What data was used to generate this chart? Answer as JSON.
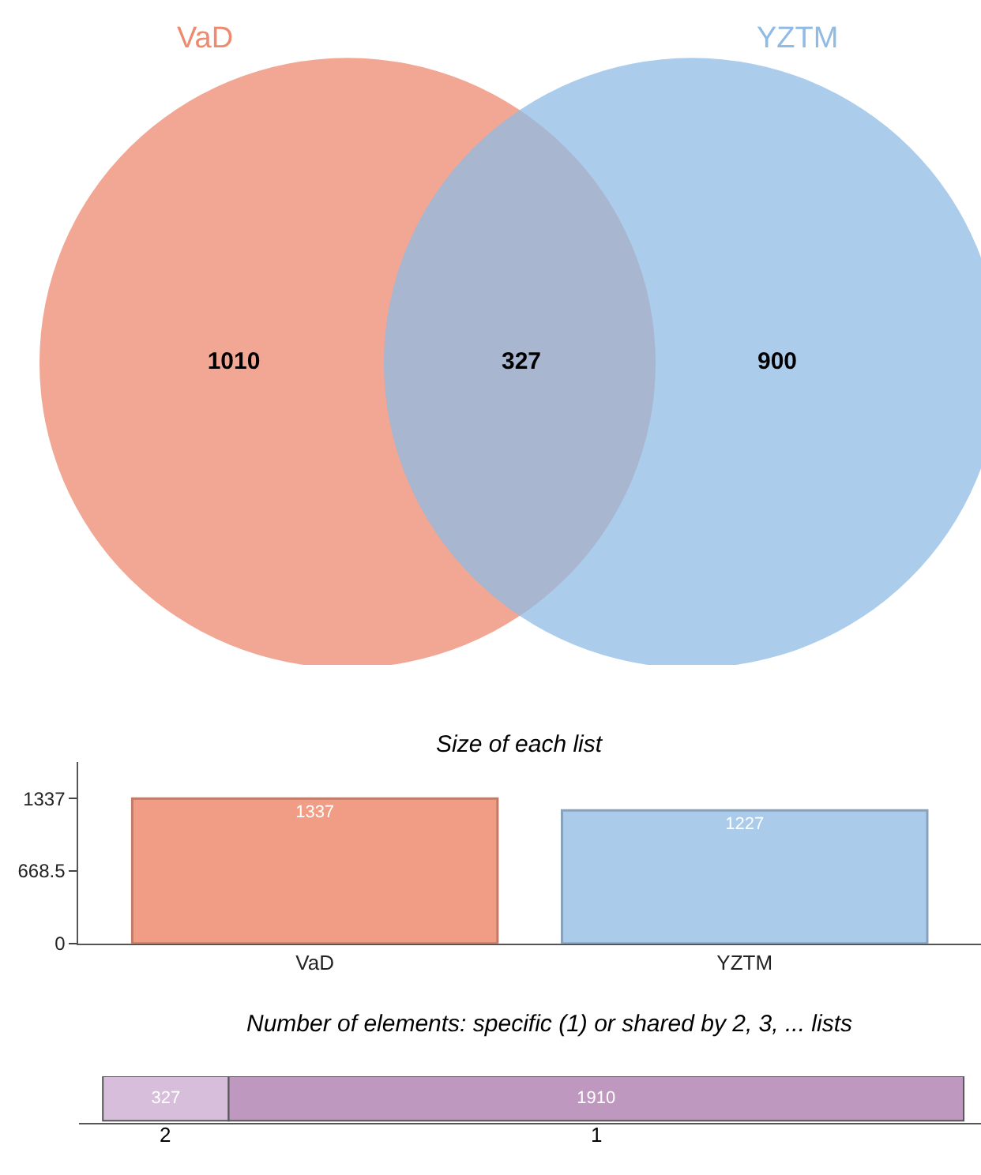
{
  "chart_data": [
    {
      "type": "other",
      "categories": [
        null,
        null,
        null
      ],
      "values": [
        1010,
        327,
        900
      ],
      "colors": [
        "#ee8a70",
        "#a79db0",
        "#8fbbe4"
      ],
      "data_labels": true,
      "annotations": [
        "VaD",
        "YZTM"
      ]
    },
    {
      "type": "bar",
      "title": "Size of each list",
      "categories": [
        "VaD",
        "YZTM"
      ],
      "values": [
        1337,
        1227
      ],
      "colors": [
        "#f19c84",
        "#abcbea"
      ],
      "ylim": [
        0,
        1675
      ],
      "yticks": [
        0,
        668.5,
        1337
      ],
      "data_labels": true
    },
    {
      "type": "bar",
      "title": "Number of elements: specific (1) or shared by 2, 3, ... lists",
      "orientation": "horizontal",
      "stacked": true,
      "categories": [
        null
      ],
      "series": [
        {
          "name": "2",
          "color": "#d7bedb",
          "values": [
            327
          ]
        },
        {
          "name": "1",
          "color": "#bf98c0",
          "values": [
            1910
          ]
        }
      ],
      "xlim": [
        -62,
        2282
      ],
      "data_labels": true,
      "tick_labels": false
    }
  ]
}
